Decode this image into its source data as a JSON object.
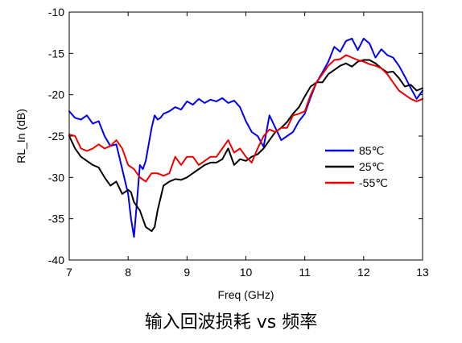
{
  "caption": "输入回波损耗 vs 频率",
  "chart_data": {
    "type": "line",
    "title": "",
    "xlabel": "Freq (GHz)",
    "ylabel": "RL_In (dB)",
    "xlim": [
      7,
      13
    ],
    "ylim": [
      -40,
      -10
    ],
    "xticks": [
      "7",
      "8",
      "9",
      "10",
      "11",
      "12",
      "13"
    ],
    "yticks": [
      "-10",
      "-15",
      "-20",
      "-25",
      "-30",
      "-35",
      "-40"
    ],
    "grid": false,
    "legend_position": "right-middle",
    "series": [
      {
        "name": "85℃",
        "color": "#0000ee",
        "x": [
          7.0,
          7.1,
          7.2,
          7.3,
          7.4,
          7.5,
          7.6,
          7.7,
          7.8,
          7.9,
          8.0,
          8.05,
          8.1,
          8.15,
          8.2,
          8.25,
          8.3,
          8.4,
          8.45,
          8.5,
          8.55,
          8.6,
          8.7,
          8.8,
          8.9,
          9.0,
          9.1,
          9.2,
          9.3,
          9.4,
          9.5,
          9.6,
          9.7,
          9.8,
          9.9,
          10.0,
          10.1,
          10.2,
          10.3,
          10.4,
          10.5,
          10.6,
          10.7,
          10.8,
          10.9,
          11.0,
          11.1,
          11.2,
          11.3,
          11.4,
          11.5,
          11.6,
          11.7,
          11.8,
          11.9,
          12.0,
          12.1,
          12.2,
          12.3,
          12.4,
          12.5,
          12.6,
          12.7,
          12.8,
          12.9,
          13.0
        ],
        "y": [
          -22,
          -22.8,
          -23,
          -22.5,
          -23.5,
          -23.2,
          -25,
          -26.2,
          -26,
          -29,
          -32,
          -35,
          -37.2,
          -33,
          -28.5,
          -29,
          -28,
          -24,
          -22.5,
          -23,
          -22.8,
          -22.3,
          -22,
          -21.5,
          -21.8,
          -20.8,
          -21.2,
          -20.5,
          -21,
          -20.6,
          -20.8,
          -20.4,
          -21,
          -20.7,
          -21.5,
          -23.2,
          -24.5,
          -25,
          -26.3,
          -22.5,
          -24,
          -25.5,
          -25,
          -24.5,
          -23.2,
          -22.3,
          -20.3,
          -18.5,
          -17.3,
          -16,
          -14.2,
          -14.8,
          -13.5,
          -13.2,
          -14.6,
          -13.2,
          -13.8,
          -15.5,
          -14.5,
          -15.2,
          -15.5,
          -16.5,
          -17.8,
          -19.2,
          -20.5,
          -19.5
        ]
      },
      {
        "name": "25℃",
        "color": "#000000",
        "x": [
          7.0,
          7.1,
          7.2,
          7.3,
          7.4,
          7.5,
          7.6,
          7.7,
          7.8,
          7.9,
          8.0,
          8.05,
          8.1,
          8.2,
          8.3,
          8.4,
          8.45,
          8.5,
          8.6,
          8.7,
          8.8,
          8.9,
          9.0,
          9.1,
          9.2,
          9.3,
          9.4,
          9.5,
          9.6,
          9.7,
          9.8,
          9.9,
          10.0,
          10.1,
          10.2,
          10.3,
          10.4,
          10.5,
          10.6,
          10.7,
          10.8,
          10.9,
          11.0,
          11.1,
          11.2,
          11.3,
          11.4,
          11.5,
          11.6,
          11.7,
          11.8,
          11.9,
          12.0,
          12.1,
          12.2,
          12.3,
          12.4,
          12.5,
          12.6,
          12.7,
          12.8,
          12.9,
          13.0
        ],
        "y": [
          -25,
          -26.5,
          -27.5,
          -28,
          -28.5,
          -28.8,
          -30,
          -31,
          -30.5,
          -32,
          -31.5,
          -31.8,
          -33,
          -34,
          -36,
          -36.5,
          -36,
          -34,
          -31,
          -30.5,
          -30.2,
          -30.3,
          -30,
          -29.5,
          -29,
          -28.5,
          -28.2,
          -28.2,
          -27.8,
          -26.5,
          -28.5,
          -27.8,
          -28,
          -27.5,
          -27.2,
          -26.5,
          -25.5,
          -24.5,
          -24,
          -23.3,
          -22.3,
          -21.5,
          -20.2,
          -19,
          -18.5,
          -18.5,
          -17.5,
          -17,
          -16.5,
          -16.2,
          -16.6,
          -16,
          -15.8,
          -15.8,
          -16.2,
          -16.8,
          -17.3,
          -17.2,
          -18,
          -19,
          -18.8,
          -19.5,
          -19.2
        ]
      },
      {
        "name": "-55℃",
        "color": "#ee0000",
        "x": [
          7.0,
          7.1,
          7.2,
          7.3,
          7.4,
          7.5,
          7.6,
          7.7,
          7.8,
          7.9,
          8.0,
          8.1,
          8.2,
          8.3,
          8.4,
          8.5,
          8.6,
          8.7,
          8.8,
          8.9,
          9.0,
          9.1,
          9.2,
          9.3,
          9.4,
          9.5,
          9.6,
          9.7,
          9.8,
          9.9,
          10.0,
          10.1,
          10.2,
          10.3,
          10.4,
          10.5,
          10.6,
          10.7,
          10.8,
          10.9,
          11.0,
          11.1,
          11.2,
          11.3,
          11.4,
          11.5,
          11.6,
          11.7,
          11.8,
          11.9,
          12.0,
          12.1,
          12.2,
          12.3,
          12.4,
          12.5,
          12.6,
          12.7,
          12.8,
          12.9,
          13.0
        ],
        "y": [
          -24.8,
          -25,
          -26.5,
          -26.8,
          -26.5,
          -26,
          -26.5,
          -26.2,
          -25.5,
          -26.5,
          -28.5,
          -29,
          -30,
          -30.5,
          -29.5,
          -29.5,
          -29.8,
          -29.5,
          -27.5,
          -28.5,
          -27.5,
          -27.5,
          -28.5,
          -28,
          -27.5,
          -27.5,
          -26.5,
          -25.5,
          -27,
          -26.5,
          -27.5,
          -28.2,
          -26.5,
          -25,
          -24.2,
          -24.5,
          -24,
          -24,
          -22.5,
          -22.3,
          -22,
          -20,
          -18.5,
          -17.5,
          -16.5,
          -15.8,
          -15.7,
          -15.2,
          -15.5,
          -15.8,
          -16,
          -16.3,
          -16.5,
          -16.8,
          -17.5,
          -18.5,
          -19.5,
          -20,
          -20.5,
          -20.8,
          -20.5
        ]
      }
    ]
  }
}
